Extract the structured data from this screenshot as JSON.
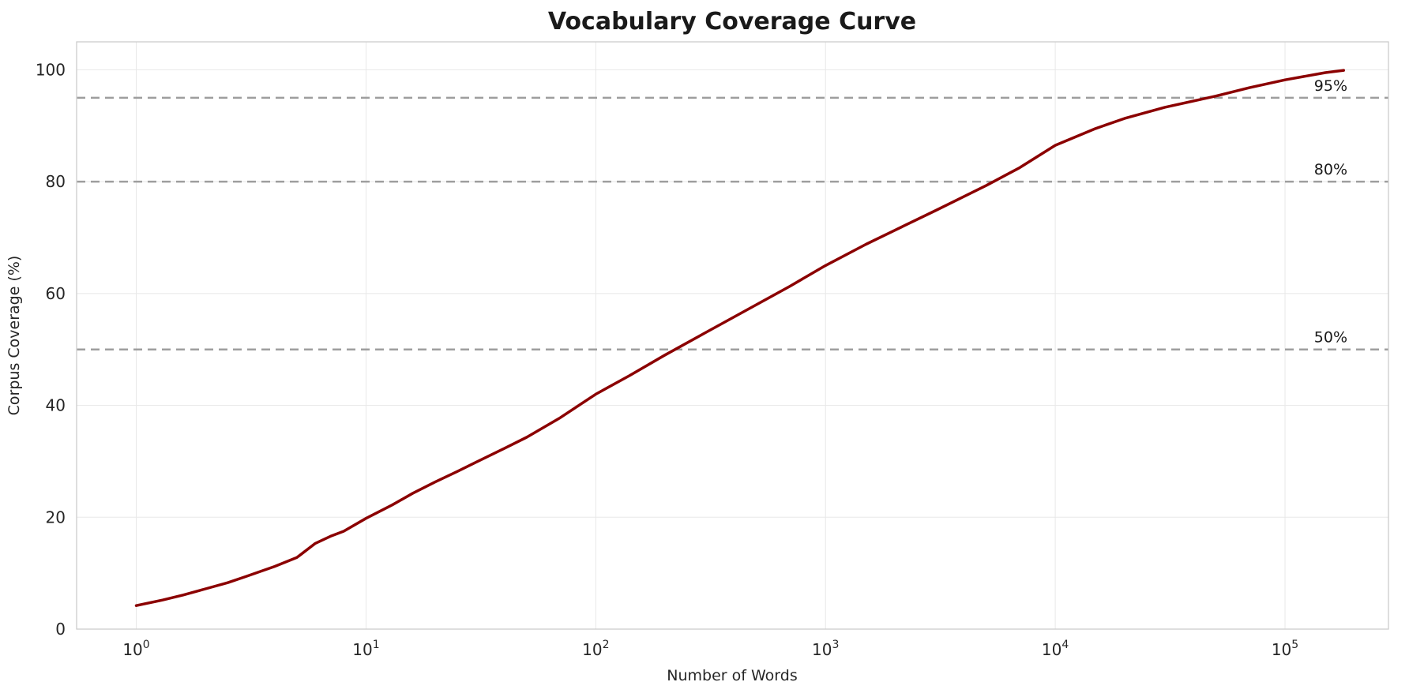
{
  "chart_data": {
    "type": "line",
    "title": "Vocabulary Coverage Curve",
    "xlabel": "Number of Words",
    "ylabel": "Corpus Coverage (%)",
    "x_scale": "log",
    "xlim": [
      0.55,
      282000
    ],
    "ylim": [
      0,
      105
    ],
    "grid": true,
    "grid_color": "#e8e8e8",
    "x_ticks": [
      {
        "base": "10",
        "exp": 0
      },
      {
        "base": "10",
        "exp": 1
      },
      {
        "base": "10",
        "exp": 2
      },
      {
        "base": "10",
        "exp": 3
      },
      {
        "base": "10",
        "exp": 4
      },
      {
        "base": "10",
        "exp": 5
      }
    ],
    "y_ticks": [
      0,
      20,
      40,
      60,
      80,
      100
    ],
    "series": [
      {
        "name": "coverage",
        "color": "#8b0000",
        "line_width": 3.5,
        "x": [
          1,
          1.3,
          1.6,
          2,
          2.5,
          3,
          4,
          5,
          6,
          7,
          8,
          10,
          13,
          16,
          20,
          25,
          30,
          40,
          50,
          70,
          100,
          140,
          200,
          300,
          500,
          700,
          1000,
          1500,
          2000,
          3000,
          5000,
          7000,
          10000,
          15000,
          20000,
          30000,
          50000,
          70000,
          100000,
          150000,
          180000
        ],
        "y": [
          4.2,
          5.2,
          6.1,
          7.2,
          8.3,
          9.4,
          11.2,
          12.8,
          15.3,
          16.6,
          17.5,
          19.8,
          22.2,
          24.3,
          26.3,
          28.2,
          29.8,
          32.3,
          34.3,
          37.8,
          42.0,
          45.3,
          49.0,
          53.0,
          58.0,
          61.3,
          65.0,
          68.8,
          71.3,
          74.8,
          79.3,
          82.5,
          86.5,
          89.5,
          91.3,
          93.3,
          95.3,
          96.8,
          98.2,
          99.5,
          99.9
        ]
      }
    ],
    "reference_lines": [
      {
        "y": 50,
        "label": "50%"
      },
      {
        "y": 80,
        "label": "80%"
      },
      {
        "y": 95,
        "label": "95%"
      }
    ],
    "reference_line_color": "#9e9e9e",
    "reference_line_style": "dashed",
    "legend": "none"
  }
}
